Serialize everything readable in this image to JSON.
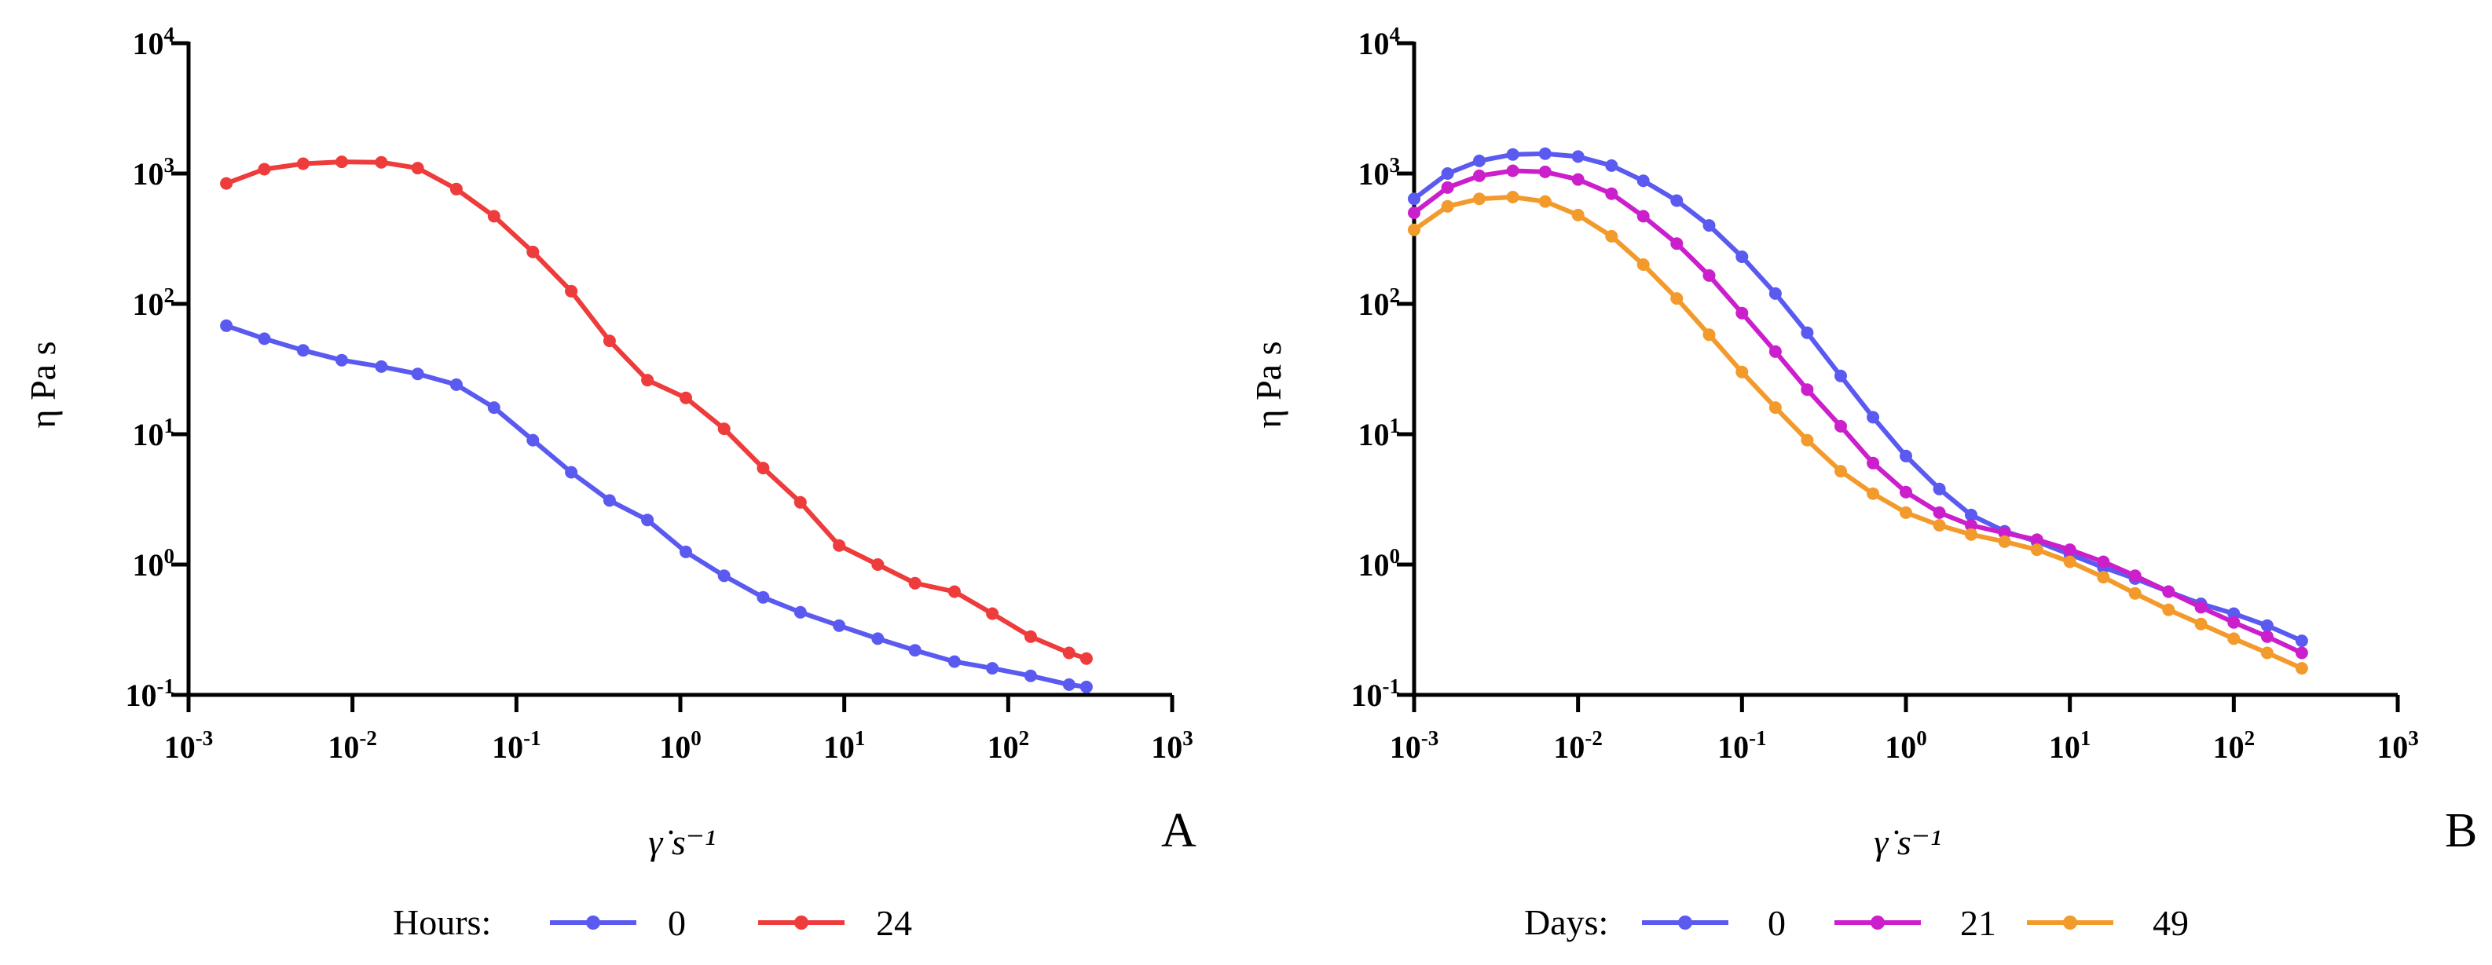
{
  "chart_data": [
    {
      "type": "line",
      "panel_letter": "A",
      "title": "",
      "xlabel": "γ̇ s⁻¹",
      "ylabel": "η Pa s",
      "xscale": "log",
      "yscale": "log",
      "xlim": [
        0.001,
        1000
      ],
      "ylim": [
        0.1,
        10000
      ],
      "x_ticks": [
        {
          "base": "10",
          "exp": "-3"
        },
        {
          "base": "10",
          "exp": "-2"
        },
        {
          "base": "10",
          "exp": "-1"
        },
        {
          "base": "10",
          "exp": "0"
        },
        {
          "base": "10",
          "exp": "1"
        },
        {
          "base": "10",
          "exp": "2"
        },
        {
          "base": "10",
          "exp": "3"
        }
      ],
      "y_ticks": [
        {
          "base": "10",
          "exp": "-1"
        },
        {
          "base": "10",
          "exp": "0"
        },
        {
          "base": "10",
          "exp": "1"
        },
        {
          "base": "10",
          "exp": "2"
        },
        {
          "base": "10",
          "exp": "3"
        },
        {
          "base": "10",
          "exp": "4"
        }
      ],
      "legend_title": "Hours:",
      "series": [
        {
          "name": "0",
          "color": "#5a5af0",
          "points": [
            [
              0.0017,
              68
            ],
            [
              0.0029,
              54
            ],
            [
              0.005,
              44
            ],
            [
              0.0086,
              37
            ],
            [
              0.015,
              33
            ],
            [
              0.025,
              29
            ],
            [
              0.043,
              24
            ],
            [
              0.073,
              16
            ],
            [
              0.126,
              9.0
            ],
            [
              0.216,
              5.1
            ],
            [
              0.37,
              3.1
            ],
            [
              0.63,
              2.2
            ],
            [
              1.08,
              1.25
            ],
            [
              1.85,
              0.82
            ],
            [
              3.2,
              0.56
            ],
            [
              5.4,
              0.43
            ],
            [
              9.3,
              0.34
            ],
            [
              16,
              0.27
            ],
            [
              27,
              0.22
            ],
            [
              47,
              0.18
            ],
            [
              80,
              0.16
            ],
            [
              137,
              0.14
            ],
            [
              235,
              0.12
            ],
            [
              300,
              0.115
            ]
          ]
        },
        {
          "name": "24",
          "color": "#ee3b3b",
          "points": [
            [
              0.0017,
              840
            ],
            [
              0.0029,
              1080
            ],
            [
              0.005,
              1190
            ],
            [
              0.0086,
              1230
            ],
            [
              0.015,
              1220
            ],
            [
              0.025,
              1100
            ],
            [
              0.043,
              760
            ],
            [
              0.073,
              470
            ],
            [
              0.126,
              250
            ],
            [
              0.216,
              125
            ],
            [
              0.37,
              52
            ],
            [
              0.63,
              26
            ],
            [
              1.08,
              19
            ],
            [
              1.85,
              11
            ],
            [
              3.2,
              5.5
            ],
            [
              5.4,
              3.0
            ],
            [
              9.3,
              1.4
            ],
            [
              16,
              1.0
            ],
            [
              27,
              0.72
            ],
            [
              47,
              0.62
            ],
            [
              80,
              0.42
            ],
            [
              137,
              0.28
            ],
            [
              235,
              0.21
            ],
            [
              300,
              0.19
            ]
          ]
        }
      ]
    },
    {
      "type": "line",
      "panel_letter": "B",
      "title": "",
      "xlabel": "γ̇ s⁻¹",
      "ylabel": "η Pa s",
      "xscale": "log",
      "yscale": "log",
      "xlim": [
        0.001,
        1000
      ],
      "ylim": [
        0.1,
        10000
      ],
      "x_ticks": [
        {
          "base": "10",
          "exp": "-3"
        },
        {
          "base": "10",
          "exp": "-2"
        },
        {
          "base": "10",
          "exp": "-1"
        },
        {
          "base": "10",
          "exp": "0"
        },
        {
          "base": "10",
          "exp": "1"
        },
        {
          "base": "10",
          "exp": "2"
        },
        {
          "base": "10",
          "exp": "3"
        }
      ],
      "y_ticks": [
        {
          "base": "10",
          "exp": "-1"
        },
        {
          "base": "10",
          "exp": "0"
        },
        {
          "base": "10",
          "exp": "1"
        },
        {
          "base": "10",
          "exp": "2"
        },
        {
          "base": "10",
          "exp": "3"
        },
        {
          "base": "10",
          "exp": "4"
        }
      ],
      "legend_title": "Days:",
      "series": [
        {
          "name": "0",
          "color": "#5a5af0",
          "points": [
            [
              0.001,
              640
            ],
            [
              0.0016,
              1000
            ],
            [
              0.0025,
              1250
            ],
            [
              0.004,
              1400
            ],
            [
              0.0063,
              1420
            ],
            [
              0.01,
              1350
            ],
            [
              0.016,
              1150
            ],
            [
              0.025,
              880
            ],
            [
              0.04,
              620
            ],
            [
              0.063,
              400
            ],
            [
              0.1,
              230
            ],
            [
              0.16,
              120
            ],
            [
              0.25,
              60
            ],
            [
              0.4,
              28
            ],
            [
              0.63,
              13.5
            ],
            [
              1.0,
              6.8
            ],
            [
              1.6,
              3.8
            ],
            [
              2.5,
              2.4
            ],
            [
              4.0,
              1.8
            ],
            [
              6.3,
              1.5
            ],
            [
              10,
              1.2
            ],
            [
              16,
              0.95
            ],
            [
              25,
              0.78
            ],
            [
              40,
              0.62
            ],
            [
              63,
              0.5
            ],
            [
              100,
              0.42
            ],
            [
              160,
              0.34
            ],
            [
              260,
              0.26
            ]
          ]
        },
        {
          "name": "21",
          "color": "#cc1fcc",
          "points": [
            [
              0.001,
              500
            ],
            [
              0.0016,
              780
            ],
            [
              0.0025,
              960
            ],
            [
              0.004,
              1050
            ],
            [
              0.0063,
              1030
            ],
            [
              0.01,
              900
            ],
            [
              0.016,
              700
            ],
            [
              0.025,
              470
            ],
            [
              0.04,
              290
            ],
            [
              0.063,
              165
            ],
            [
              0.1,
              85
            ],
            [
              0.16,
              43
            ],
            [
              0.25,
              22
            ],
            [
              0.4,
              11.5
            ],
            [
              0.63,
              6.0
            ],
            [
              1.0,
              3.6
            ],
            [
              1.6,
              2.5
            ],
            [
              2.5,
              2.0
            ],
            [
              4.0,
              1.75
            ],
            [
              6.3,
              1.55
            ],
            [
              10,
              1.3
            ],
            [
              16,
              1.05
            ],
            [
              25,
              0.82
            ],
            [
              40,
              0.62
            ],
            [
              63,
              0.47
            ],
            [
              100,
              0.36
            ],
            [
              160,
              0.28
            ],
            [
              260,
              0.21
            ]
          ]
        },
        {
          "name": "49",
          "color": "#f39a2c",
          "points": [
            [
              0.001,
              370
            ],
            [
              0.0016,
              560
            ],
            [
              0.0025,
              640
            ],
            [
              0.004,
              660
            ],
            [
              0.0063,
              610
            ],
            [
              0.01,
              480
            ],
            [
              0.016,
              330
            ],
            [
              0.025,
              200
            ],
            [
              0.04,
              110
            ],
            [
              0.063,
              58
            ],
            [
              0.1,
              30
            ],
            [
              0.16,
              16
            ],
            [
              0.25,
              9.0
            ],
            [
              0.4,
              5.2
            ],
            [
              0.63,
              3.5
            ],
            [
              1.0,
              2.5
            ],
            [
              1.6,
              2.0
            ],
            [
              2.5,
              1.7
            ],
            [
              4.0,
              1.5
            ],
            [
              6.3,
              1.3
            ],
            [
              10,
              1.05
            ],
            [
              16,
              0.8
            ],
            [
              25,
              0.6
            ],
            [
              40,
              0.45
            ],
            [
              63,
              0.35
            ],
            [
              100,
              0.27
            ],
            [
              160,
              0.21
            ],
            [
              260,
              0.16
            ]
          ]
        }
      ]
    }
  ]
}
